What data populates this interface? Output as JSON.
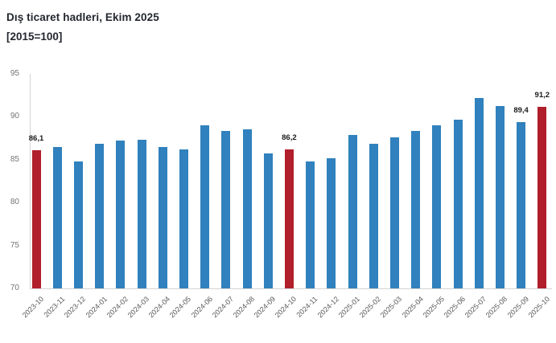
{
  "header": {
    "title": "Dış ticaret hadleri, Ekim 2025",
    "subtitle": "[2015=100]"
  },
  "chart_data": {
    "type": "bar",
    "title": "Dış ticaret hadleri, Ekim 2025",
    "subtitle": "[2015=100]",
    "xlabel": "",
    "ylabel": "",
    "ylim": [
      70,
      95
    ],
    "yticks": [
      70,
      75,
      80,
      85,
      90,
      95
    ],
    "grid": false,
    "legend": null,
    "categories": [
      "2023-10",
      "2023-11",
      "2023-12",
      "2024-01",
      "2024-02",
      "2024-03",
      "2024-04",
      "2024-05",
      "2024-06",
      "2024-07",
      "2024-08",
      "2024-09",
      "2024-10",
      "2024-11",
      "2024-12",
      "2025-01",
      "2025-02",
      "2025-03",
      "2025-04",
      "2025-05",
      "2025-06",
      "2025-07",
      "2025-08",
      "2025-09",
      "2025-10"
    ],
    "values": [
      86.1,
      86.5,
      84.8,
      86.9,
      87.2,
      87.3,
      86.5,
      86.2,
      89.0,
      88.4,
      88.5,
      85.7,
      86.2,
      84.8,
      85.2,
      87.9,
      86.9,
      87.6,
      88.4,
      89.0,
      89.7,
      92.2,
      91.3,
      89.4,
      91.2
    ],
    "highlighted_categories": [
      "2023-10",
      "2024-10",
      "2025-10"
    ],
    "point_labels": [
      {
        "category": "2023-10",
        "text": "86,1"
      },
      {
        "category": "2024-10",
        "text": "86,2"
      },
      {
        "category": "2025-09",
        "text": "89,4"
      },
      {
        "category": "2025-10",
        "text": "91,2"
      }
    ],
    "colors": {
      "default": "#3081bd",
      "highlight": "#b01f2b",
      "axis_line": "#d3d3d3",
      "y_tick_text": "#757575",
      "x_tick_text": "#595959",
      "value_label_text": "#1a1a1a",
      "title_text": "#23272f",
      "background": "#ffffff"
    }
  }
}
